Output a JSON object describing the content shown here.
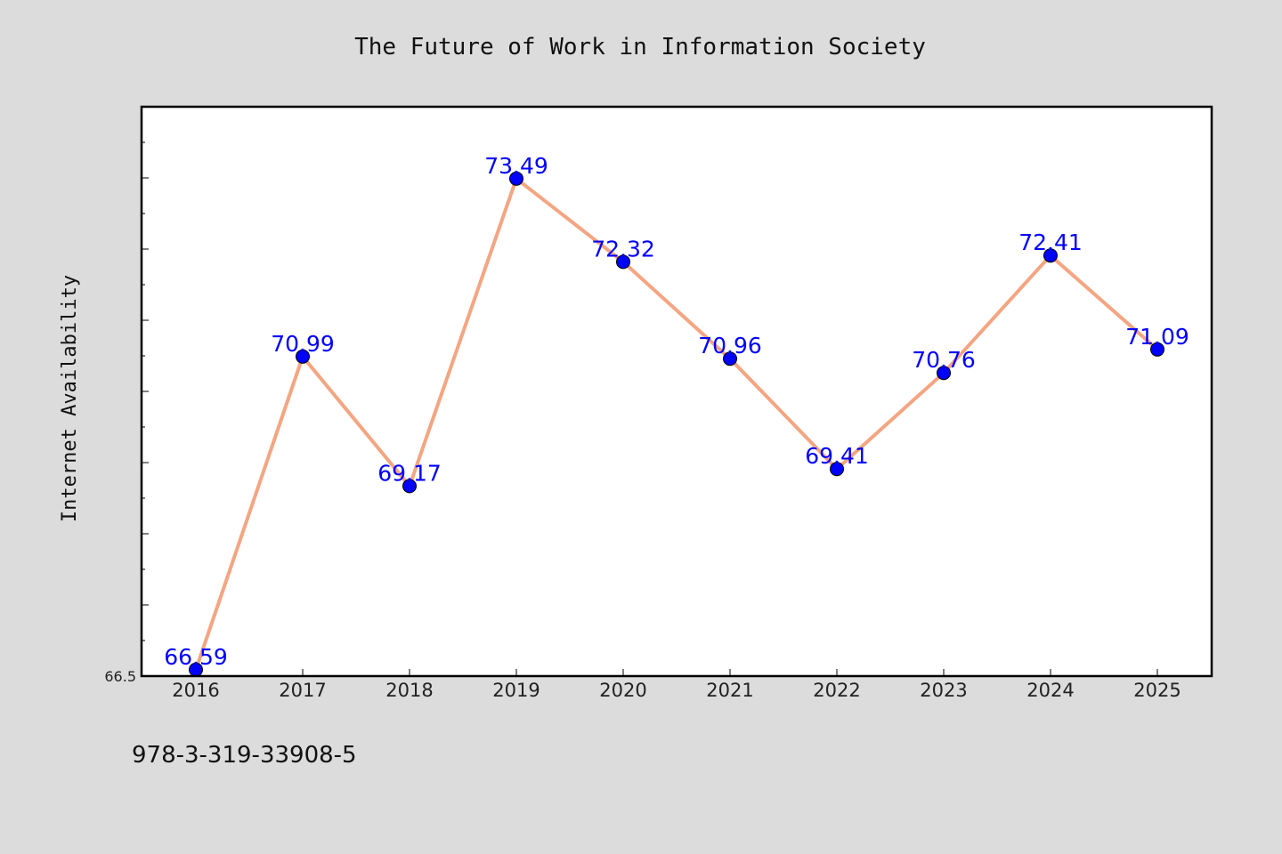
{
  "chart_data": {
    "type": "line",
    "title": "The Future of Work in Information Society",
    "xlabel": "",
    "ylabel": "Internet Availability",
    "categories": [
      "2016",
      "2017",
      "2018",
      "2019",
      "2020",
      "2021",
      "2022",
      "2023",
      "2024",
      "2025"
    ],
    "series": [
      {
        "values": [
          66.59,
          70.99,
          69.17,
          73.49,
          72.32,
          70.96,
          69.41,
          70.76,
          72.41,
          71.09
        ],
        "labels": [
          "66.59",
          "70.99",
          "69.17",
          "73.49",
          "72.32",
          "70.96",
          "69.41",
          "70.76",
          "72.41",
          "71.09"
        ],
        "line_color": "#f4a582",
        "marker_color": "#0000ff"
      }
    ],
    "ylim": [
      66.5,
      74.5
    ],
    "ytick_labels": [
      "66.5"
    ],
    "grid": false,
    "legend": "none",
    "background_color": "#dcdcdc",
    "plot_background": "#ffffff"
  },
  "footer": {
    "identifier": "978-3-319-33908-5"
  }
}
